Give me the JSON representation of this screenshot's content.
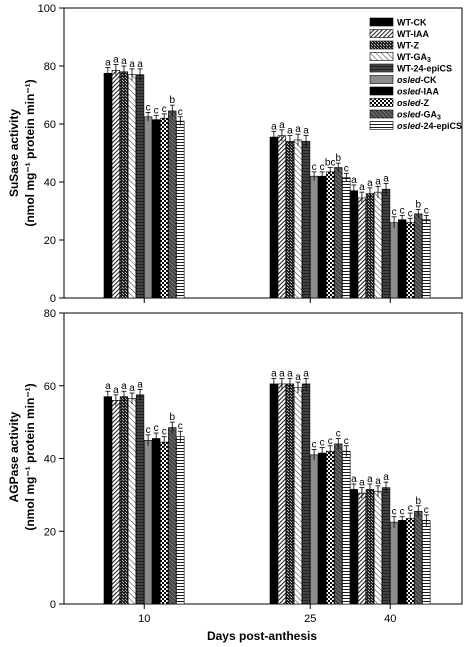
{
  "chart_data": [
    {
      "type": "bar",
      "ylabel_line1": "SuSase activity",
      "ylabel_line2": "(nmol mg⁻¹ protein min⁻¹)",
      "ylim": [
        0,
        100
      ],
      "yticks": [
        0,
        20,
        40,
        60,
        80,
        100
      ],
      "categories": [
        "10",
        "25",
        "40"
      ],
      "series": [
        {
          "name": "WT-CK",
          "values": [
            77.5,
            55.5,
            37.0
          ],
          "errors": [
            2.0,
            2.0,
            2.0
          ],
          "letters": [
            "a",
            "a",
            "a"
          ]
        },
        {
          "name": "WT-IAA",
          "values": [
            78.5,
            56.0,
            34.5
          ],
          "errors": [
            2.0,
            2.0,
            2.0
          ],
          "letters": [
            "a",
            "a",
            "a"
          ]
        },
        {
          "name": "WT-Z",
          "values": [
            78.0,
            54.0,
            36.0
          ],
          "errors": [
            2.0,
            2.0,
            2.0
          ],
          "letters": [
            "a",
            "a",
            "a"
          ]
        },
        {
          "name": "WT-GA3",
          "values": [
            77.0,
            54.5,
            36.5
          ],
          "errors": [
            2.0,
            2.0,
            2.0
          ],
          "letters": [
            "a",
            "a",
            "a"
          ]
        },
        {
          "name": "WT-24-epiCS",
          "values": [
            77.0,
            54.0,
            37.5
          ],
          "errors": [
            2.0,
            2.0,
            2.0
          ],
          "letters": [
            "a",
            "a",
            "a"
          ]
        },
        {
          "name": "osled-CK",
          "values": [
            62.5,
            42.0,
            26.0
          ],
          "errors": [
            1.5,
            1.5,
            2.0
          ],
          "letters": [
            "c",
            "c",
            "c"
          ]
        },
        {
          "name": "osled-IAA",
          "values": [
            61.5,
            42.0,
            27.0
          ],
          "errors": [
            1.5,
            1.5,
            1.5
          ],
          "letters": [
            "c",
            "c",
            "c"
          ]
        },
        {
          "name": "osled-Z",
          "values": [
            62.0,
            43.5,
            26.0
          ],
          "errors": [
            1.5,
            1.5,
            1.5
          ],
          "letters": [
            "c",
            "bc",
            "c"
          ]
        },
        {
          "name": "osled-GA3",
          "values": [
            64.5,
            45.0,
            29.0
          ],
          "errors": [
            2.0,
            1.5,
            1.5
          ],
          "letters": [
            "b",
            "b",
            "b"
          ]
        },
        {
          "name": "osled-24-epiCS",
          "values": [
            61.0,
            41.5,
            27.0
          ],
          "errors": [
            1.5,
            1.5,
            1.5
          ],
          "letters": [
            "c",
            "c",
            "c"
          ]
        }
      ]
    },
    {
      "type": "bar",
      "ylabel_line1": "AGPase activity",
      "ylabel_line2": "(nmol mg⁻¹ protein min⁻¹)",
      "ylim": [
        0,
        80
      ],
      "yticks": [
        0,
        20,
        40,
        60,
        80
      ],
      "categories": [
        "10",
        "25",
        "40"
      ],
      "series": [
        {
          "name": "WT-CK",
          "values": [
            57.0,
            60.5,
            31.5
          ],
          "errors": [
            1.5,
            1.5,
            1.5
          ],
          "letters": [
            "a",
            "a",
            "a"
          ]
        },
        {
          "name": "WT-IAA",
          "values": [
            56.0,
            60.5,
            30.5
          ],
          "errors": [
            1.5,
            1.5,
            1.5
          ],
          "letters": [
            "a",
            "a",
            "a"
          ]
        },
        {
          "name": "WT-Z",
          "values": [
            57.0,
            60.5,
            31.5
          ],
          "errors": [
            1.5,
            1.5,
            1.5
          ],
          "letters": [
            "a",
            "a",
            "a"
          ]
        },
        {
          "name": "WT-GA3",
          "values": [
            56.5,
            59.5,
            31.0
          ],
          "errors": [
            1.5,
            1.5,
            1.5
          ],
          "letters": [
            "a",
            "a",
            "a"
          ]
        },
        {
          "name": "WT-24-epiCS",
          "values": [
            57.5,
            60.5,
            32.0
          ],
          "errors": [
            1.5,
            1.5,
            1.5
          ],
          "letters": [
            "a",
            "a",
            "a"
          ]
        },
        {
          "name": "osled-CK",
          "values": [
            45.0,
            41.0,
            22.5
          ],
          "errors": [
            1.5,
            1.5,
            1.5
          ],
          "letters": [
            "c",
            "c",
            "c"
          ]
        },
        {
          "name": "osled-IAA",
          "values": [
            45.5,
            41.5,
            23.0
          ],
          "errors": [
            1.5,
            1.5,
            1.0
          ],
          "letters": [
            "c",
            "c",
            "c"
          ]
        },
        {
          "name": "osled-Z",
          "values": [
            44.5,
            42.0,
            23.5
          ],
          "errors": [
            1.5,
            1.5,
            1.5
          ],
          "letters": [
            "c",
            "c",
            "c"
          ]
        },
        {
          "name": "osled-GA3",
          "values": [
            48.5,
            44.0,
            25.5
          ],
          "errors": [
            1.5,
            1.5,
            1.5
          ],
          "letters": [
            "b",
            "c",
            "b"
          ]
        },
        {
          "name": "osled-24-epiCS",
          "values": [
            46.0,
            42.0,
            23.0
          ],
          "errors": [
            1.5,
            1.5,
            1.5
          ],
          "letters": [
            "c",
            "c",
            "c"
          ]
        }
      ]
    }
  ],
  "xlabel": "Days post-anthesis",
  "legend_position": "top-right",
  "legend": [
    {
      "prefix": "WT",
      "suffix": "-CK",
      "sub": "",
      "italic": false,
      "pattern": "solid-black"
    },
    {
      "prefix": "WT",
      "suffix": "-IAA",
      "sub": "",
      "italic": false,
      "pattern": "diag-dense"
    },
    {
      "prefix": "WT",
      "suffix": "-Z",
      "sub": "",
      "italic": false,
      "pattern": "crosshatch-dark"
    },
    {
      "prefix": "WT",
      "suffix": "-GA",
      "sub": "3",
      "italic": false,
      "pattern": "diag-light"
    },
    {
      "prefix": "WT",
      "suffix": "-24-epiCS",
      "sub": "",
      "italic": false,
      "pattern": "hstripe-dark"
    },
    {
      "prefix": "osled",
      "suffix": "-CK",
      "sub": "",
      "italic": true,
      "pattern": "solid-gray"
    },
    {
      "prefix": "osled",
      "suffix": "-IAA",
      "sub": "",
      "italic": true,
      "pattern": "solid-black"
    },
    {
      "prefix": "osled",
      "suffix": "-Z",
      "sub": "",
      "italic": true,
      "pattern": "checker"
    },
    {
      "prefix": "osled",
      "suffix": "-GA",
      "sub": "3",
      "italic": true,
      "pattern": "diag-dark"
    },
    {
      "prefix": "osled",
      "suffix": "-24-epiCS",
      "sub": "",
      "italic": true,
      "pattern": "hstripe-light"
    }
  ],
  "colors": {
    "axis": "#000000",
    "bar_outline": "#000000",
    "gray_fill": "#8c8c8c"
  }
}
